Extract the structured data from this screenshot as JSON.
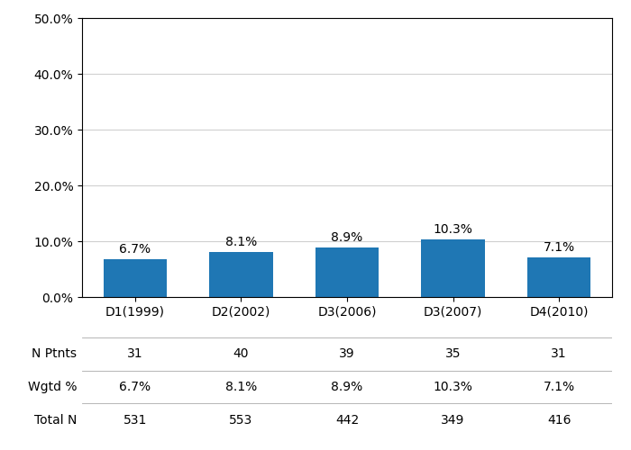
{
  "chart_data": {
    "type": "bar",
    "categories": [
      "D1(1999)",
      "D2(2002)",
      "D3(2006)",
      "D3(2007)",
      "D4(2010)"
    ],
    "values": [
      6.7,
      8.1,
      8.9,
      10.3,
      7.1
    ],
    "value_labels": [
      "6.7%",
      "8.1%",
      "8.9%",
      "10.3%",
      "7.1%"
    ],
    "data_labels": true,
    "ylim": [
      0,
      50
    ],
    "yticks": [
      {
        "value": 0,
        "label": "0.0%"
      },
      {
        "value": 10,
        "label": "10.0%"
      },
      {
        "value": 20,
        "label": "20.0%"
      },
      {
        "value": 30,
        "label": "30.0%"
      },
      {
        "value": 40,
        "label": "40.0%"
      },
      {
        "value": 50,
        "label": "50.0%"
      }
    ],
    "grid": true,
    "table": [
      {
        "name": "N Ptnts",
        "values": [
          31,
          40,
          39,
          35,
          31
        ]
      },
      {
        "name": "Wgtd %",
        "values": [
          6.7,
          8.1,
          8.9,
          10.3,
          7.1
        ],
        "value_labels": [
          "6.7%",
          "8.1%",
          "8.9%",
          "10.3%",
          "7.1%"
        ]
      },
      {
        "name": "Total N",
        "values": [
          531,
          553,
          442,
          349,
          416
        ]
      }
    ]
  }
}
